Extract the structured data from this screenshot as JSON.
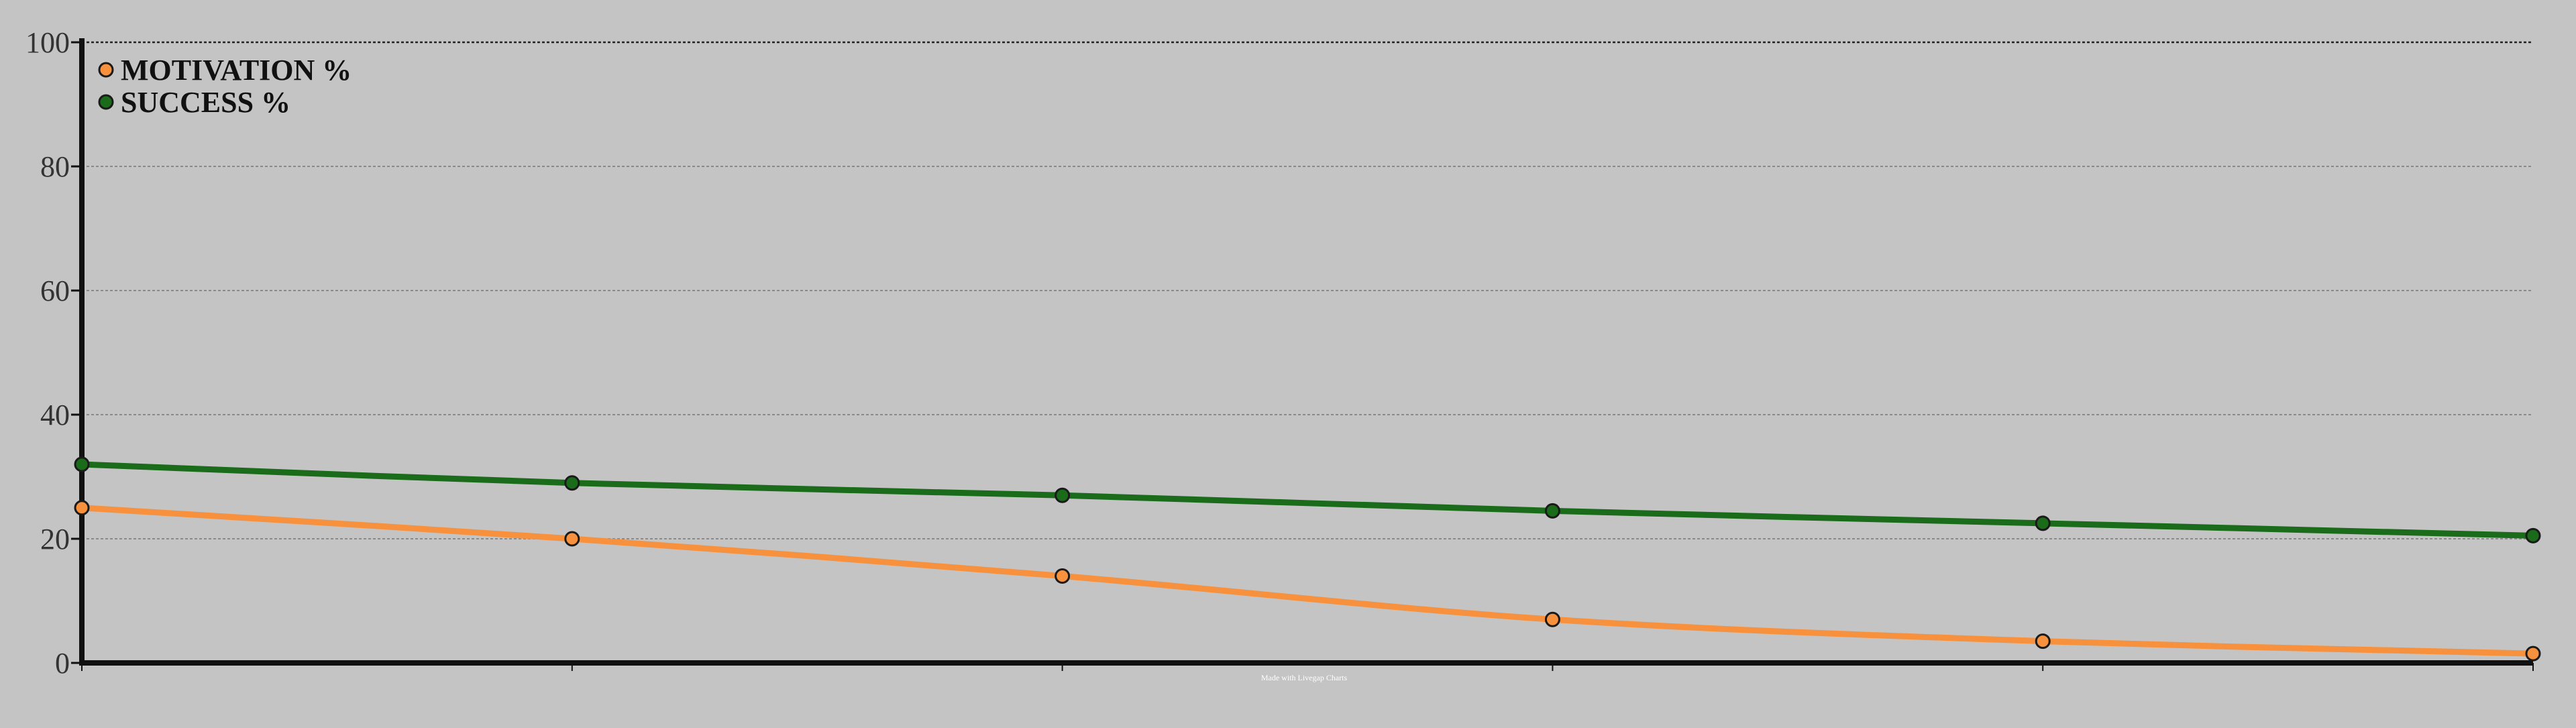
{
  "chart_data": {
    "type": "line",
    "x": [
      0,
      1,
      2,
      3,
      4,
      5
    ],
    "ylim": [
      0,
      100
    ],
    "yticks": [
      "0",
      "20",
      "40",
      "60",
      "80",
      "100"
    ],
    "grid": true,
    "legend_position": "top-left",
    "series": [
      {
        "name": "MOTIVATION %",
        "color": "#f7913d",
        "values": [
          25,
          20,
          14,
          7,
          3.5,
          1.5
        ]
      },
      {
        "name": "SUCCESS %",
        "color": "#1a6b1a",
        "values": [
          32,
          29,
          27,
          24.5,
          22.5,
          20.5
        ]
      }
    ],
    "watermark": "Made with Livegap Charts"
  }
}
